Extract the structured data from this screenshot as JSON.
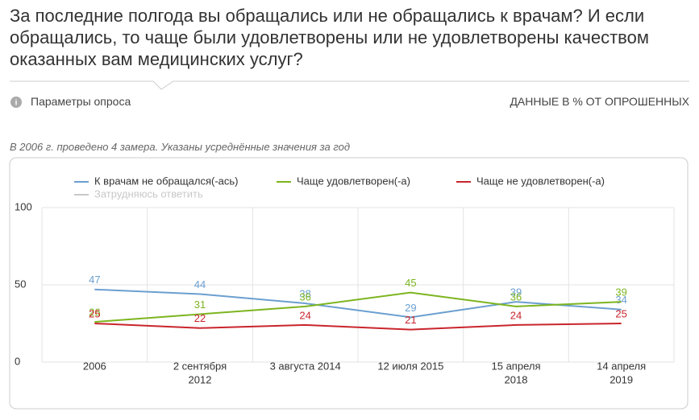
{
  "header": {
    "title": "За последние полгода вы обращались или не обращались к врачам? И если обращались, то чаще были удовлетворены или не удовлетворены качеством оказанных вам медицинских услуг?",
    "params": "Параметры опроса",
    "units": "ДАННЫЕ В % ОТ ОПРОШЕННЫХ",
    "note": "В 2006 г. проведено 4 замера. Указаны усреднённые значения за год"
  },
  "chart_data": {
    "type": "line",
    "categories": [
      [
        "2006"
      ],
      [
        "2 сентября",
        "2012"
      ],
      [
        "3 августа 2014"
      ],
      [
        "12 июля 2015"
      ],
      [
        "15 апреля",
        "2018"
      ],
      [
        "14 апреля",
        "2019"
      ]
    ],
    "series": [
      {
        "name": "К врачам не обращался(-ась)",
        "color": "#6b9fd0",
        "values": [
          47,
          44,
          38,
          29,
          39,
          34
        ]
      },
      {
        "name": "Чаще удовлетворен(-а)",
        "color": "#7cb51f",
        "values": [
          26,
          31,
          36,
          45,
          36,
          39
        ]
      },
      {
        "name": "Чаще не удовлетворен(-а)",
        "color": "#c9252c",
        "values": [
          25,
          22,
          24,
          21,
          24,
          25
        ]
      },
      {
        "name": "Затрудняюсь ответить",
        "color": "#c8c8c8",
        "hidden": true,
        "values": [
          null,
          null,
          null,
          null,
          null,
          null
        ]
      }
    ],
    "ylim": [
      0,
      100
    ],
    "yticks": [
      0,
      50,
      100
    ],
    "grid": true
  }
}
